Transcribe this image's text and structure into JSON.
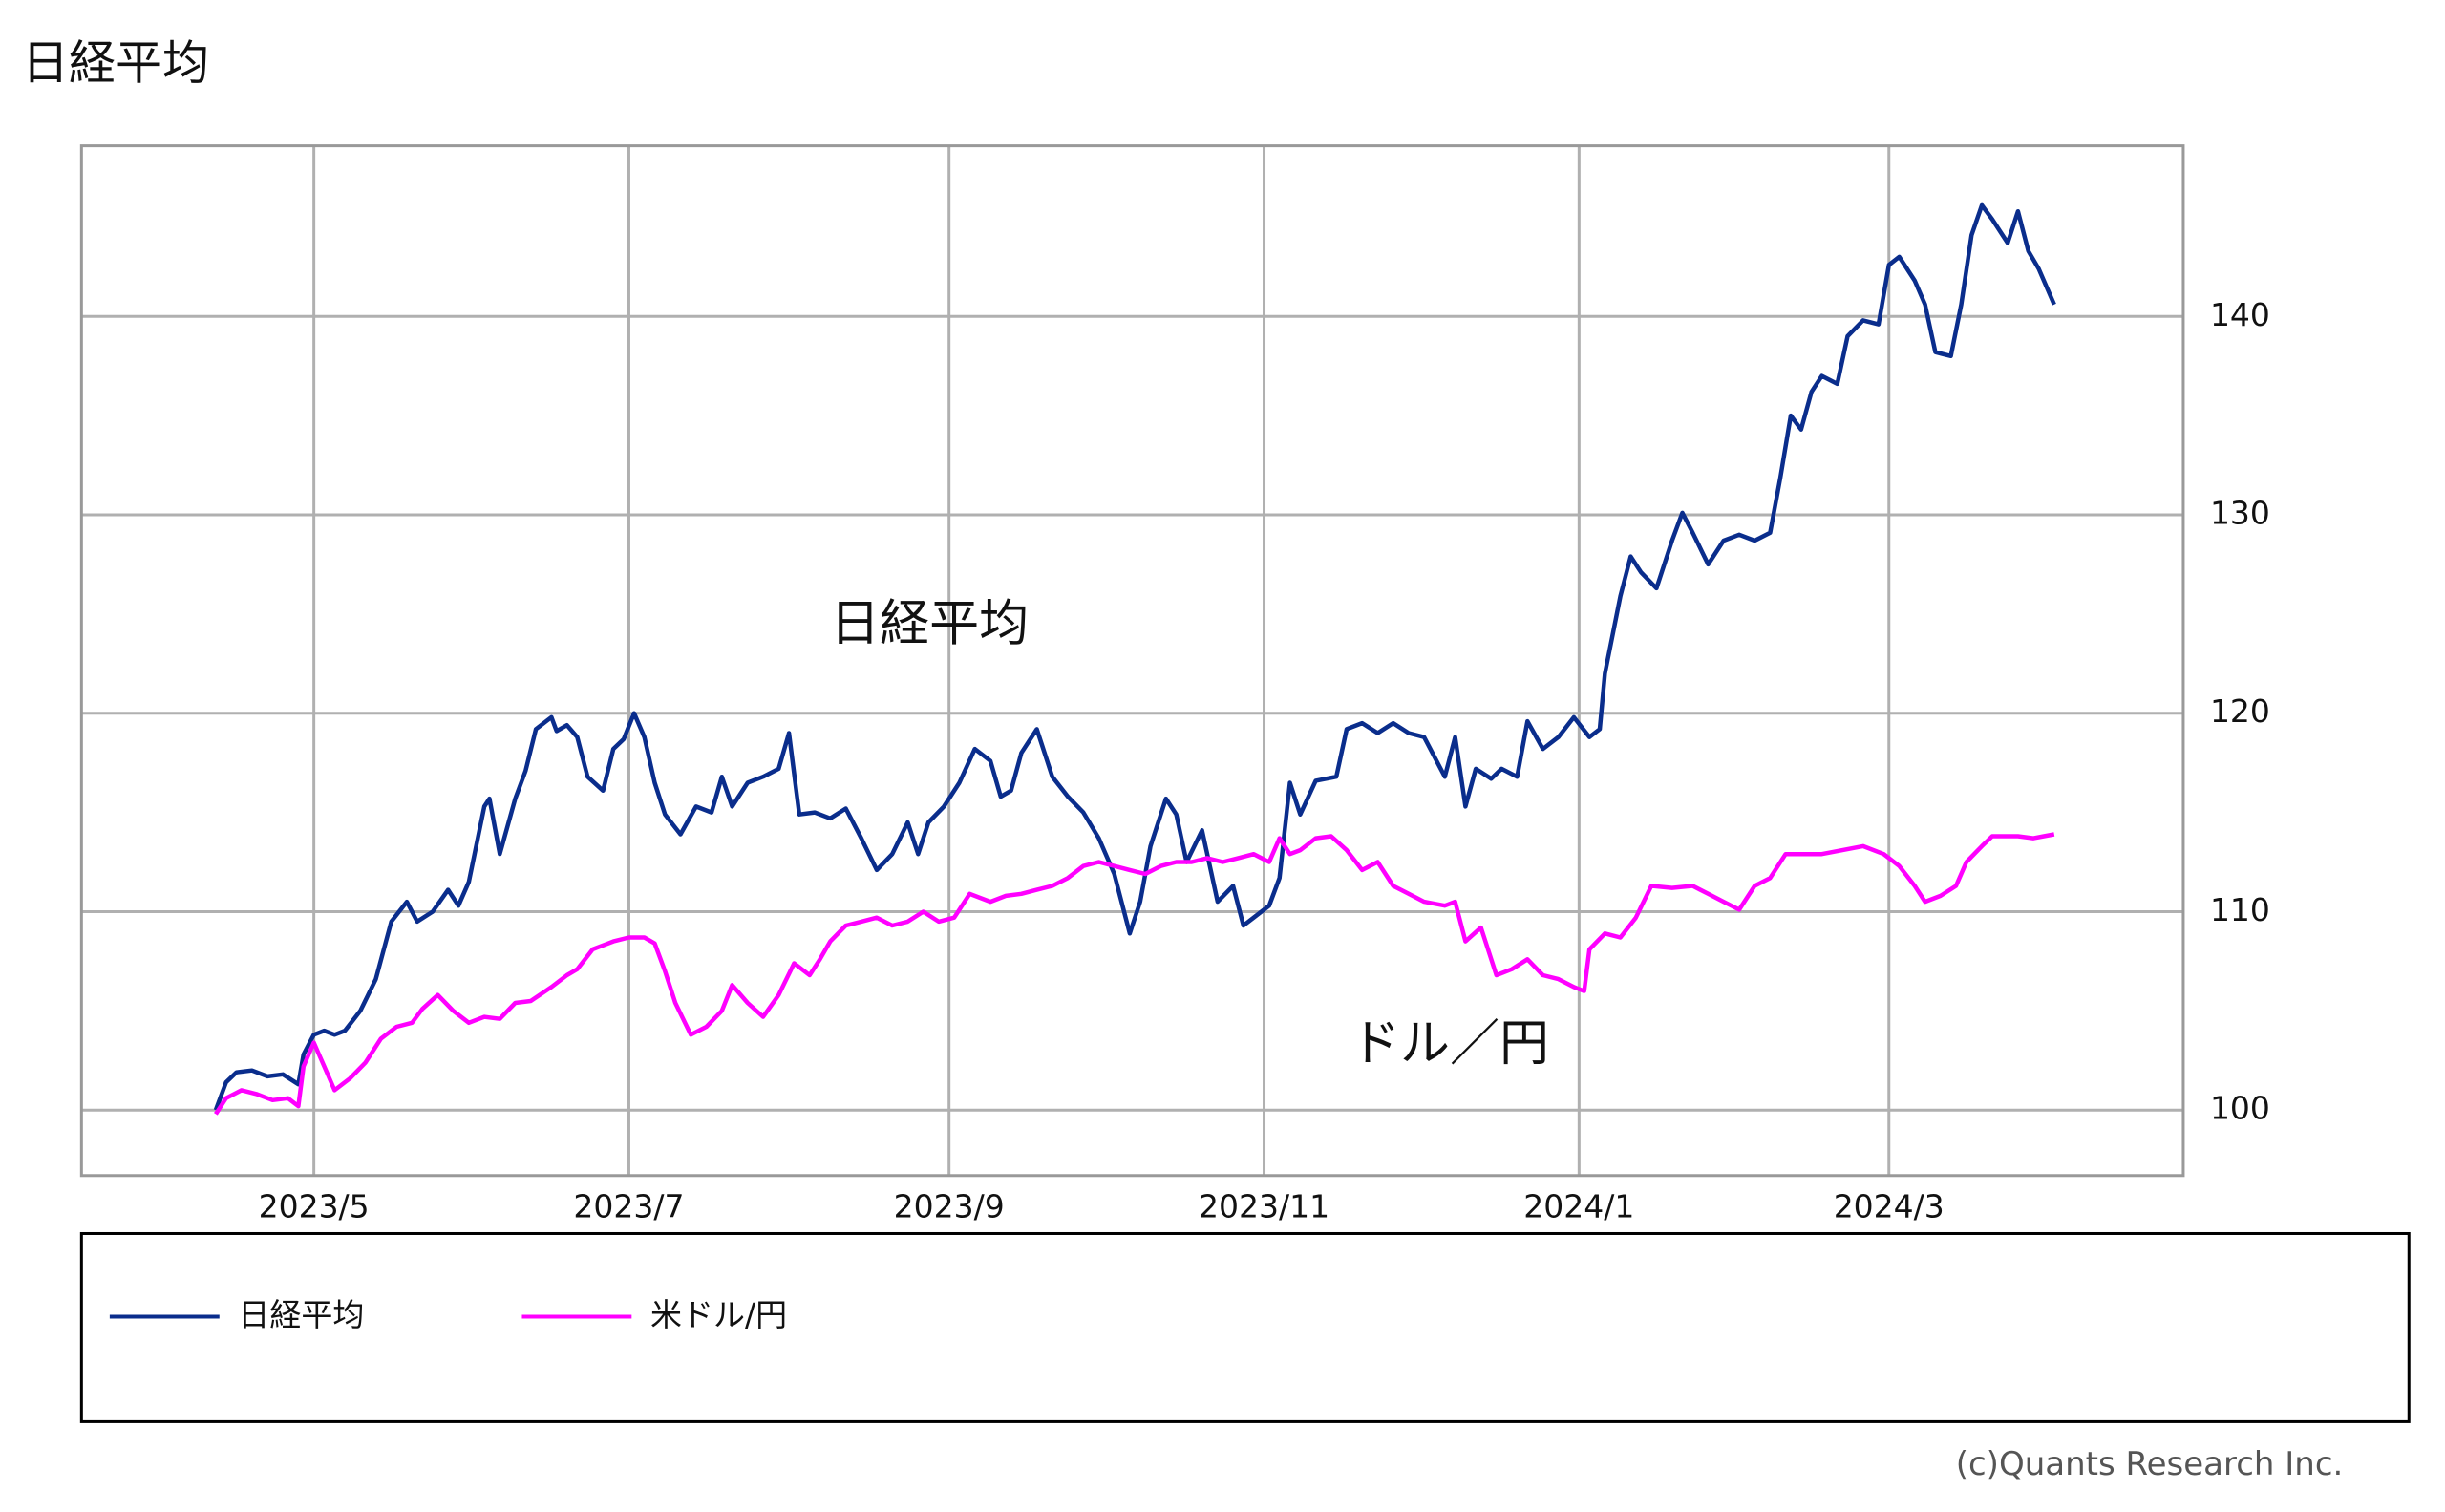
{
  "chart_data": {
    "type": "line",
    "title": "日経平均",
    "source": "(c)Quants Research Inc.",
    "annotations": [
      {
        "text": "日経平均"
      },
      {
        "text": "ドル／円"
      }
    ],
    "xlim": [
      75,
      482
    ],
    "ylim": [
      96.7,
      148.6
    ],
    "xticks": [
      {
        "value": 120,
        "label": "2023/5"
      },
      {
        "value": 181,
        "label": "2023/7"
      },
      {
        "value": 243,
        "label": "2023/9"
      },
      {
        "value": 304,
        "label": "2023/11"
      },
      {
        "value": 365,
        "label": "2024/1"
      },
      {
        "value": 425,
        "label": "2024/3"
      }
    ],
    "yticks": [
      100,
      110,
      120,
      130,
      140
    ],
    "grid": true,
    "y_axis_side": "right",
    "series": [
      {
        "name": "日経平均",
        "color": "#0a2d8c",
        "x": [
          101,
          103,
          105,
          108,
          111,
          114,
          117,
          118,
          120,
          122,
          124,
          126,
          129,
          132,
          135,
          138,
          140,
          143,
          146,
          148,
          150,
          153,
          154,
          156,
          159,
          161,
          163,
          166,
          167,
          169,
          171,
          173,
          176,
          178,
          180,
          182,
          184,
          186,
          188,
          191,
          194,
          197,
          199,
          201,
          204,
          207,
          210,
          212,
          214,
          217,
          220,
          223,
          226,
          229,
          232,
          235,
          237,
          239,
          242,
          245,
          248,
          251,
          253,
          255,
          257,
          260,
          261,
          263,
          266,
          269,
          272,
          275,
          278,
          280,
          282,
          285,
          287,
          289,
          292,
          295,
          298,
          300,
          302,
          305,
          307,
          309,
          311,
          314,
          318,
          320,
          323,
          326,
          329,
          332,
          335,
          339,
          341,
          343,
          345,
          348,
          350,
          353,
          355,
          358,
          361,
          364,
          367,
          369,
          370,
          373,
          375,
          377,
          380,
          383,
          385,
          387,
          390,
          393,
          396,
          399,
          402,
          404,
          406,
          408,
          410,
          412,
          415,
          417,
          420,
          423,
          425,
          427,
          430,
          432,
          434,
          437,
          439,
          441,
          443,
          445,
          448,
          450,
          452,
          454,
          457
        ],
        "values": [
          100.0,
          101.4,
          101.9,
          102.0,
          101.7,
          101.8,
          101.3,
          102.8,
          103.8,
          104.0,
          103.8,
          104.0,
          105.0,
          106.6,
          109.5,
          110.5,
          109.5,
          110.0,
          111.1,
          110.3,
          111.5,
          115.3,
          115.7,
          112.9,
          115.7,
          117.1,
          119.2,
          119.8,
          119.1,
          119.4,
          118.8,
          116.8,
          116.1,
          118.2,
          118.7,
          120.0,
          118.8,
          116.5,
          114.9,
          113.9,
          115.3,
          115.0,
          116.8,
          115.3,
          116.5,
          116.8,
          117.2,
          119.0,
          114.9,
          115.0,
          114.7,
          115.2,
          113.7,
          112.1,
          112.9,
          114.5,
          112.9,
          114.5,
          115.3,
          116.5,
          118.2,
          117.6,
          115.8,
          116.1,
          118.0,
          119.2,
          118.4,
          116.8,
          115.8,
          115.0,
          113.7,
          111.9,
          108.9,
          110.5,
          113.3,
          115.7,
          114.9,
          112.5,
          114.1,
          110.5,
          111.3,
          109.3,
          109.7,
          110.3,
          111.7,
          116.5,
          114.9,
          116.6,
          116.8,
          119.2,
          119.5,
          119.0,
          119.5,
          119.0,
          118.8,
          116.8,
          118.8,
          115.3,
          117.2,
          116.7,
          117.2,
          116.8,
          119.6,
          118.2,
          118.8,
          119.8,
          118.8,
          119.2,
          122.0,
          125.9,
          127.9,
          127.1,
          126.3,
          128.7,
          130.1,
          129.1,
          127.5,
          128.7,
          129.0,
          128.7,
          129.1,
          131.9,
          135.0,
          134.3,
          136.2,
          137.0,
          136.6,
          139.0,
          139.8,
          139.6,
          142.6,
          143.0,
          141.8,
          140.6,
          138.2,
          138.0,
          140.6,
          144.1,
          145.6,
          144.9,
          143.7,
          145.3,
          143.3,
          142.4,
          140.6
        ]
      },
      {
        "name": "米ドル/円",
        "color": "#ff00ff",
        "x": [
          101,
          103,
          106,
          109,
          112,
          115,
          117,
          118,
          120,
          122,
          124,
          127,
          130,
          133,
          136,
          139,
          141,
          144,
          147,
          150,
          153,
          156,
          159,
          162,
          166,
          169,
          171,
          174,
          178,
          181,
          184,
          186,
          188,
          190,
          193,
          196,
          199,
          201,
          204,
          207,
          210,
          213,
          216,
          218,
          220,
          223,
          226,
          229,
          232,
          235,
          238,
          241,
          244,
          247,
          251,
          254,
          257,
          260,
          263,
          266,
          269,
          272,
          275,
          278,
          281,
          284,
          287,
          290,
          293,
          296,
          299,
          302,
          305,
          307,
          309,
          311,
          314,
          317,
          320,
          323,
          326,
          329,
          332,
          335,
          339,
          341,
          343,
          346,
          349,
          352,
          355,
          358,
          361,
          364,
          366,
          367,
          370,
          373,
          376,
          379,
          383,
          387,
          390,
          393,
          396,
          399,
          402,
          405,
          408,
          412,
          416,
          420,
          424,
          427,
          430,
          432,
          435,
          438,
          440,
          443,
          445,
          450,
          453,
          455,
          457
        ],
        "values": [
          99.8,
          100.6,
          101.0,
          100.8,
          100.5,
          100.6,
          100.2,
          102.2,
          103.4,
          102.2,
          101.0,
          101.6,
          102.4,
          103.6,
          104.2,
          104.4,
          105.1,
          105.8,
          105.0,
          104.4,
          104.7,
          104.6,
          105.4,
          105.5,
          106.2,
          106.8,
          107.1,
          108.1,
          108.5,
          108.7,
          108.7,
          108.4,
          107.0,
          105.4,
          103.8,
          104.2,
          105.0,
          106.3,
          105.4,
          104.7,
          105.8,
          107.4,
          106.8,
          107.6,
          108.5,
          109.3,
          109.5,
          109.7,
          109.3,
          109.5,
          110.0,
          109.5,
          109.7,
          110.9,
          110.5,
          110.8,
          110.9,
          111.1,
          111.3,
          111.7,
          112.3,
          112.5,
          112.3,
          112.1,
          111.9,
          112.3,
          112.5,
          112.5,
          112.7,
          112.5,
          112.7,
          112.9,
          112.5,
          113.7,
          112.9,
          113.1,
          113.7,
          113.8,
          113.1,
          112.1,
          112.5,
          111.3,
          110.9,
          110.5,
          110.3,
          110.5,
          108.5,
          109.2,
          106.8,
          107.1,
          107.6,
          106.8,
          106.6,
          106.2,
          106.0,
          108.1,
          108.9,
          108.7,
          109.7,
          111.3,
          111.2,
          111.3,
          110.9,
          110.5,
          110.1,
          111.3,
          111.7,
          112.9,
          112.9,
          112.9,
          113.1,
          113.3,
          112.9,
          112.3,
          111.3,
          110.5,
          110.8,
          111.3,
          112.5,
          113.3,
          113.8,
          113.8,
          113.7,
          113.8,
          113.9
        ]
      }
    ]
  }
}
